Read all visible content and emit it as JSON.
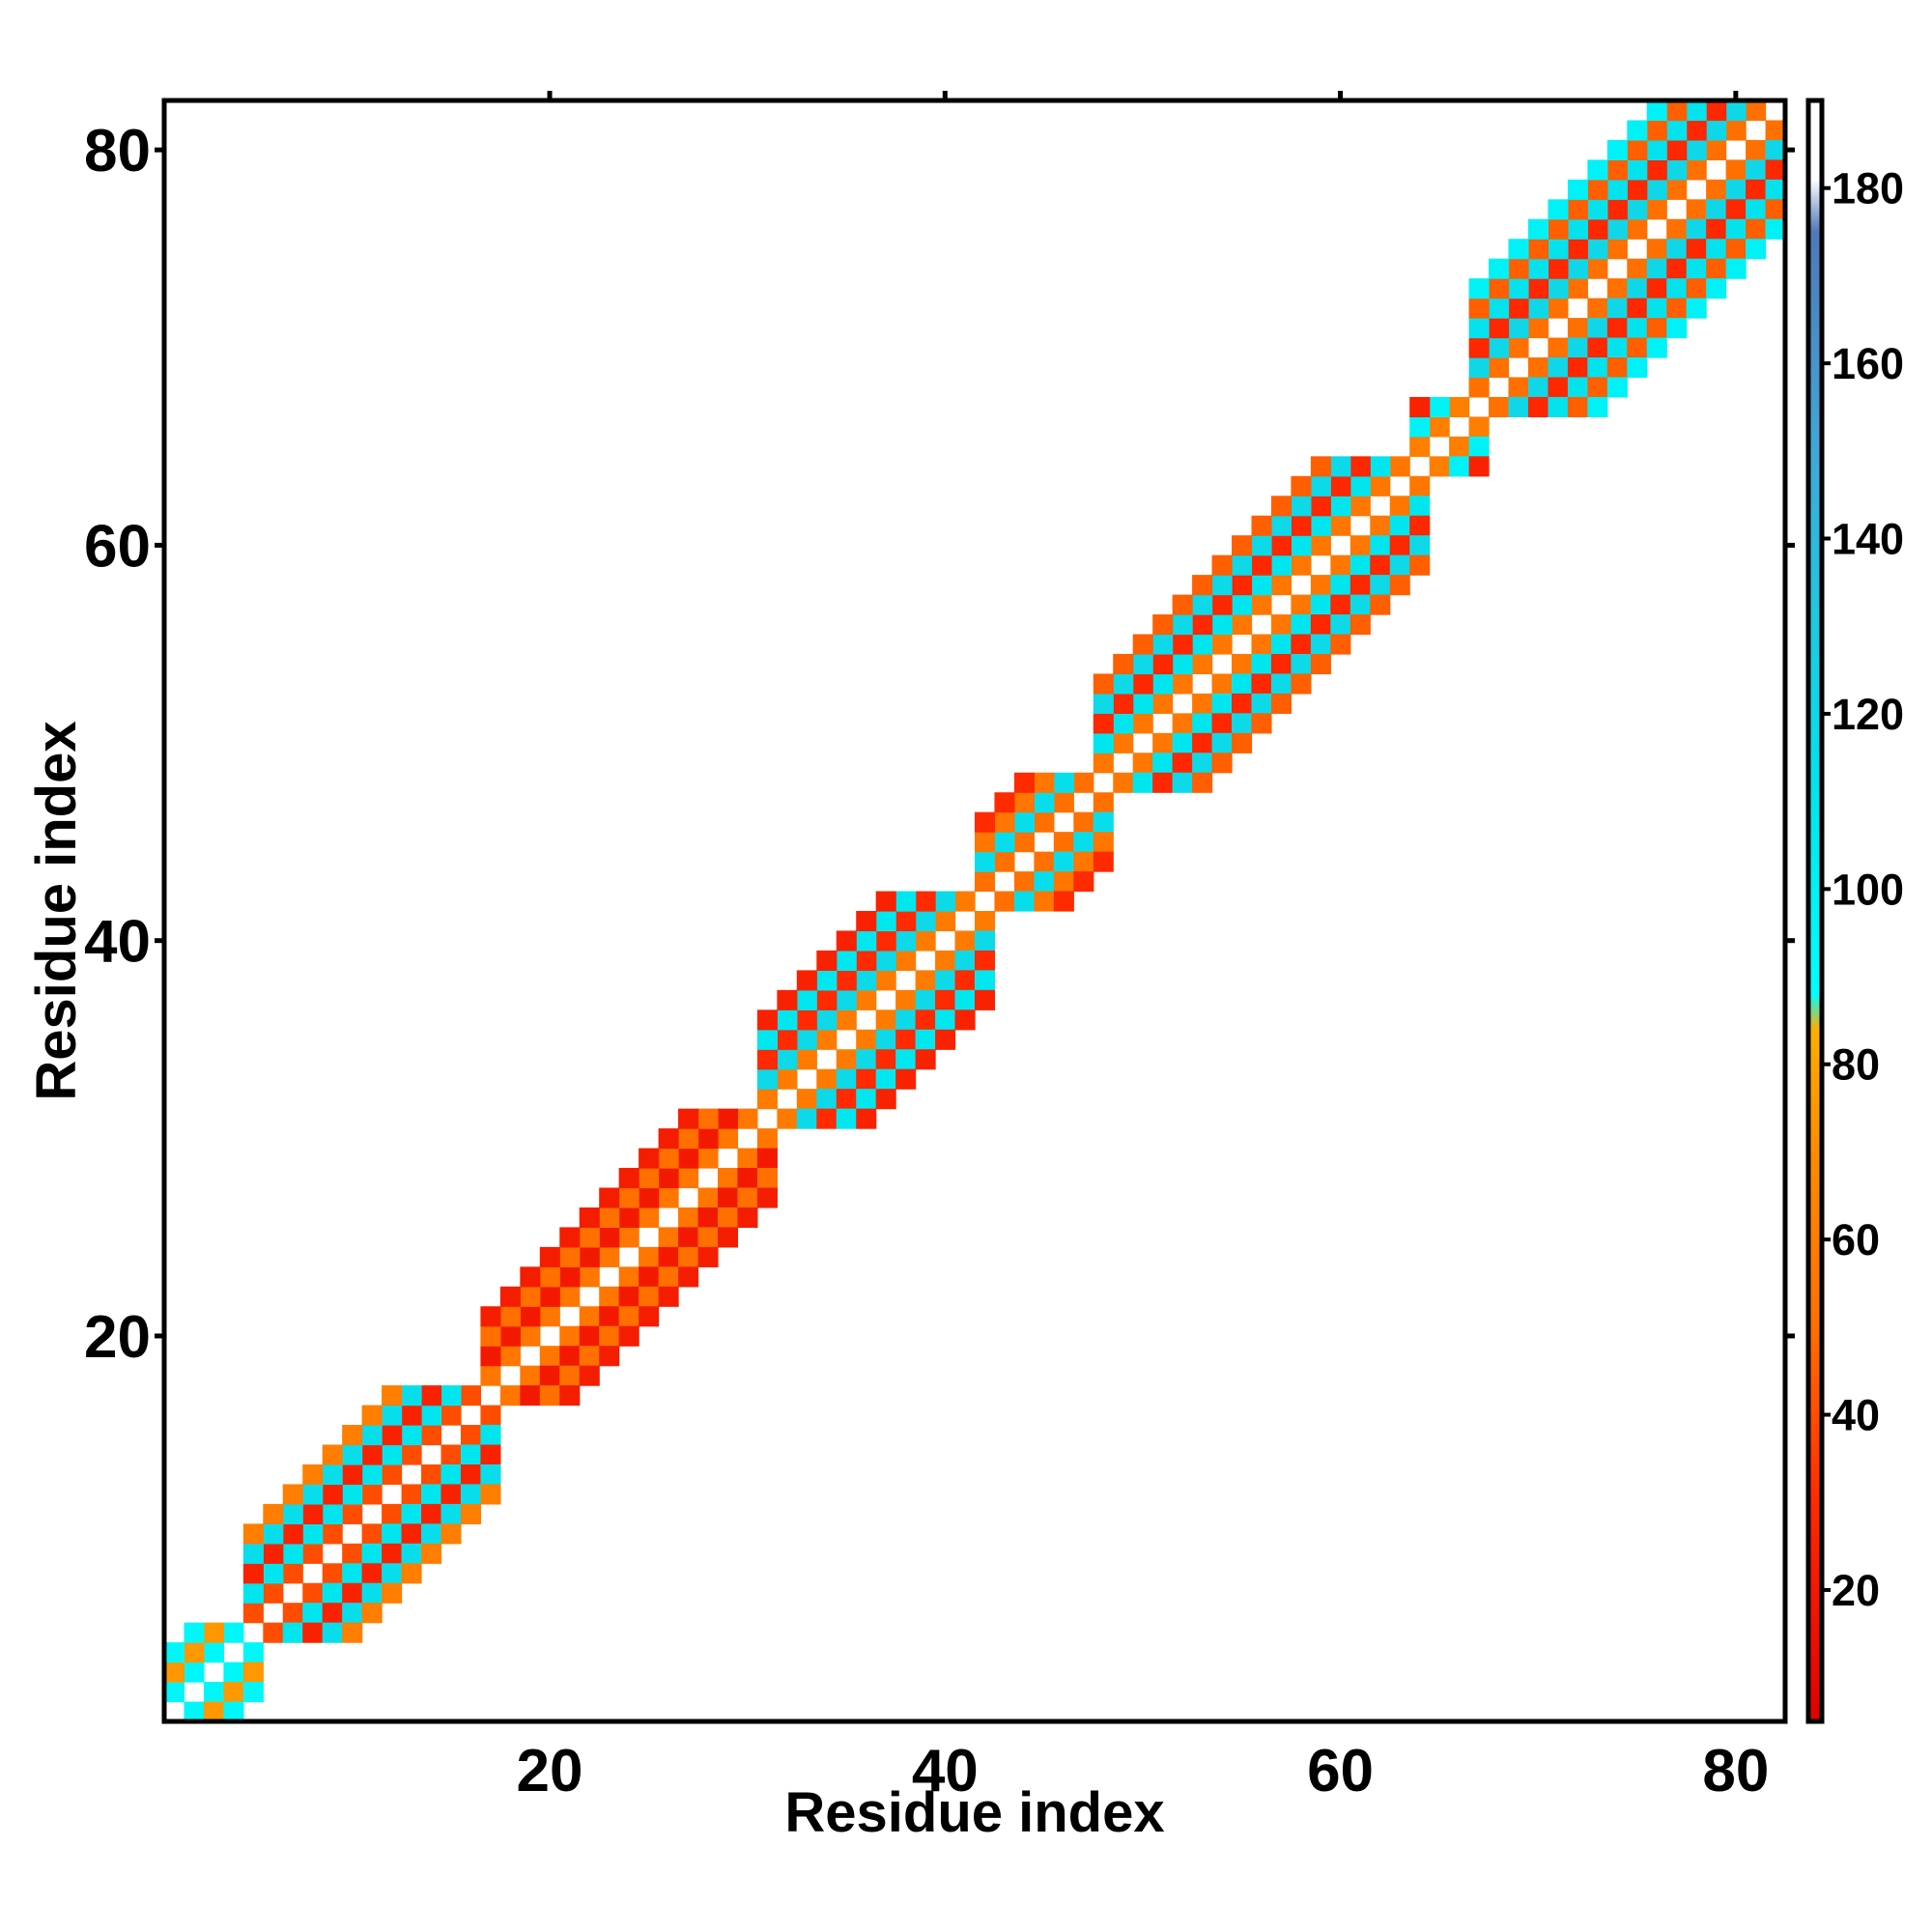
{
  "chart_data": {
    "type": "heatmap",
    "xlabel": "Residue index",
    "ylabel": "Residue index",
    "xlim": [
      0.5,
      82.5
    ],
    "ylim": [
      0.5,
      82.5
    ],
    "x_ticks": [
      20,
      40,
      60,
      80
    ],
    "x_tick_labels": [
      "20",
      "40",
      "60",
      "80"
    ],
    "y_ticks": [
      20,
      40,
      60,
      80
    ],
    "y_tick_labels": [
      "20",
      "40",
      "60",
      "80"
    ],
    "grid": false,
    "legend": "none",
    "colorbar": {
      "placement": "right",
      "range": [
        5,
        190
      ],
      "ticks": [
        20,
        40,
        60,
        80,
        100,
        120,
        140,
        160,
        180
      ],
      "tick_labels": [
        "20",
        "40",
        "60",
        "80",
        "100",
        "120",
        "140",
        "160",
        "180"
      ],
      "stops": [
        {
          "value": 5,
          "color": "#e00000"
        },
        {
          "value": 30,
          "color": "#ff2a00"
        },
        {
          "value": 50,
          "color": "#ff7000"
        },
        {
          "value": 70,
          "color": "#ff8c00"
        },
        {
          "value": 84,
          "color": "#ffae00"
        },
        {
          "value": 88,
          "color": "#00ffff"
        },
        {
          "value": 110,
          "color": "#00e5ee"
        },
        {
          "value": 130,
          "color": "#20c8e0"
        },
        {
          "value": 150,
          "color": "#40a8d8"
        },
        {
          "value": 175,
          "color": "#4f78b8"
        },
        {
          "value": 181,
          "color": "#ffffff"
        },
        {
          "value": 190,
          "color": "#ffffff"
        }
      ]
    },
    "bands": [
      {
        "range": [
          1,
          5
        ],
        "offsets": [
          1,
          2,
          3
        ],
        "values": [
          95,
          75,
          95
        ]
      },
      {
        "range": [
          5,
          17
        ],
        "offsets": [
          1,
          2,
          3,
          4,
          5
        ],
        "values": [
          40,
          110,
          25,
          115,
          60
        ]
      },
      {
        "range": [
          17,
          31
        ],
        "offsets": [
          1,
          2,
          3,
          4
        ],
        "values": [
          55,
          20,
          50,
          22
        ]
      },
      {
        "range": [
          31,
          42
        ],
        "offsets": [
          1,
          2,
          3,
          4,
          5
        ],
        "values": [
          58,
          118,
          30,
          108,
          25
        ]
      },
      {
        "range": [
          42,
          48
        ],
        "offsets": [
          1,
          2,
          3,
          4
        ],
        "values": [
          50,
          115,
          55,
          30
        ]
      },
      {
        "range": [
          48,
          64
        ],
        "offsets": [
          1,
          2,
          3,
          4,
          5
        ],
        "values": [
          55,
          110,
          28,
          118,
          45
        ]
      },
      {
        "range": [
          64,
          67
        ],
        "offsets": [
          1,
          2,
          3
        ],
        "values": [
          60,
          100,
          25
        ]
      },
      {
        "range": [
          67,
          82
        ],
        "offsets": [
          1,
          2,
          3,
          4,
          5,
          6
        ],
        "values": [
          50,
          120,
          28,
          112,
          45,
          100
        ]
      }
    ]
  }
}
